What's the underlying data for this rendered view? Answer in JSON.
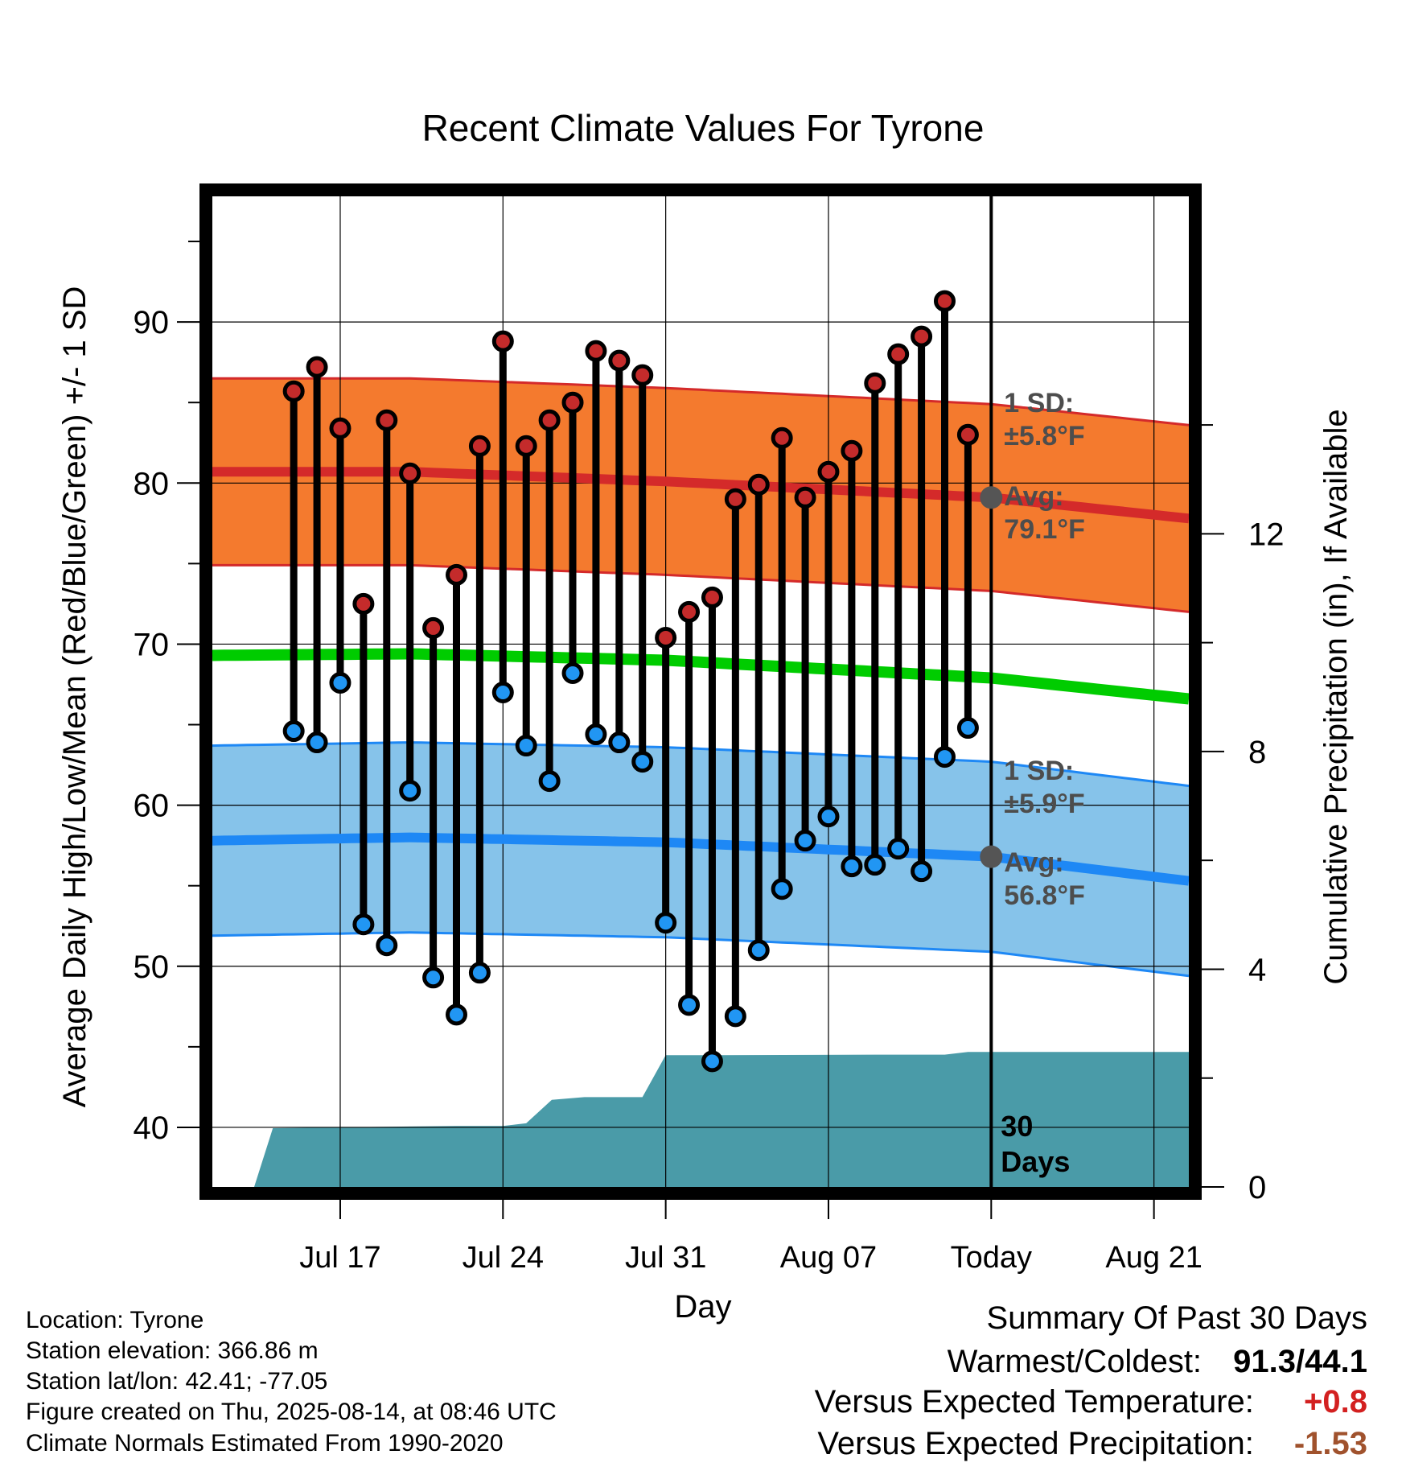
{
  "chart_data": {
    "type": "line",
    "title": "Recent Climate Values For Tyrone",
    "xlabel": "Day",
    "ylabel": "Average Daily High/Low/Mean (Red/Blue/Green) +/- 1 SD",
    "y2label": "Cumulative Precipitation (in), If Available",
    "ylim": [
      36.3,
      97.8
    ],
    "yticks": [
      40,
      50,
      60,
      70,
      80,
      90
    ],
    "y2lim": [
      0,
      18.2
    ],
    "y2ticks": [
      0,
      4,
      8,
      12
    ],
    "xrange_days": [
      -33.5,
      8.5
    ],
    "xticks": [
      {
        "day": -28,
        "label": "Jul 17"
      },
      {
        "day": -21,
        "label": "Jul 24"
      },
      {
        "day": -14,
        "label": "Jul 31"
      },
      {
        "day": -7,
        "label": "Aug 07"
      },
      {
        "day": 0,
        "label": "Today"
      },
      {
        "day": 7,
        "label": "Aug 21"
      }
    ],
    "grid": true,
    "days": [
      -30,
      -29,
      -28,
      -27,
      -26,
      -25,
      -24,
      -23,
      -22,
      -21,
      -20,
      -19,
      -18,
      -17,
      -16,
      -15,
      -14,
      -13,
      -12,
      -11,
      -10,
      -9,
      -8,
      -7,
      -6,
      -5,
      -4,
      -3,
      -2,
      -1
    ],
    "series": [
      {
        "name": "High",
        "color": "#c42b2b",
        "values": [
          85.7,
          87.2,
          83.4,
          72.5,
          83.9,
          80.6,
          71.0,
          74.3,
          82.3,
          88.8,
          82.3,
          83.9,
          85.0,
          88.2,
          87.6,
          86.7,
          70.4,
          72.0,
          72.9,
          79.0,
          79.9,
          82.8,
          79.1,
          80.7,
          82.0,
          86.2,
          88.0,
          89.1,
          91.3,
          83.0
        ]
      },
      {
        "name": "Low",
        "color": "#2196f3",
        "values": [
          64.6,
          63.9,
          67.6,
          52.6,
          51.3,
          60.9,
          49.3,
          47.0,
          49.6,
          67.0,
          63.7,
          61.5,
          68.2,
          64.4,
          63.9,
          62.7,
          52.7,
          47.6,
          44.1,
          46.9,
          51.0,
          54.8,
          57.8,
          59.3,
          56.2,
          56.3,
          57.3,
          55.9,
          63.0,
          64.8
        ]
      },
      {
        "name": "Normal High",
        "color": "#d42a2a",
        "values_at_edges": [
          80.7,
          77.8
        ],
        "curve": [
          [
            -33.5,
            80.7
          ],
          [
            -25,
            80.7
          ],
          [
            -14,
            80.1
          ],
          [
            0,
            79.1
          ],
          [
            8.5,
            77.8
          ]
        ],
        "sd": 5.8
      },
      {
        "name": "Normal Low",
        "color": "#1e88f5",
        "curve": [
          [
            -33.5,
            57.8
          ],
          [
            -25,
            58.0
          ],
          [
            -14,
            57.7
          ],
          [
            0,
            56.8
          ],
          [
            8.5,
            55.3
          ]
        ],
        "sd": 5.9
      },
      {
        "name": "Normal Mean",
        "color": "#00cc00",
        "curve": [
          [
            -33.5,
            69.3
          ],
          [
            -25,
            69.4
          ],
          [
            -14,
            69.0
          ],
          [
            0,
            67.9
          ],
          [
            8.5,
            66.6
          ]
        ]
      },
      {
        "name": "Precipitation",
        "color": "#4a9ba8",
        "cumulative": [
          [
            -33.5,
            0
          ],
          [
            -31.7,
            0
          ],
          [
            -30.9,
            1.08
          ],
          [
            -23.0,
            1.12
          ],
          [
            -21.0,
            1.12
          ],
          [
            -20.0,
            1.17
          ],
          [
            -18.9,
            1.6
          ],
          [
            -17.5,
            1.65
          ],
          [
            -15.0,
            1.65
          ],
          [
            -14.0,
            2.42
          ],
          [
            -12.0,
            2.42
          ],
          [
            -5.0,
            2.43
          ],
          [
            -2.0,
            2.43
          ],
          [
            -1.0,
            2.48
          ],
          [
            8.5,
            2.48
          ]
        ]
      }
    ],
    "today": {
      "day": 0,
      "high_avg": 79.1,
      "low_avg": 56.8
    },
    "annotations": {
      "high_sd": "1 SD:",
      "high_sd_val": "±5.8°F",
      "high_avg": "Avg:",
      "high_avg_val": "79.1°F",
      "low_sd": "1 SD:",
      "low_sd_val": "±5.9°F",
      "low_avg": "Avg:",
      "low_avg_val": "56.8°F",
      "days_num": "30",
      "days_word": "Days"
    }
  },
  "info": {
    "location": "Location: Tyrone",
    "elevation": "Station elevation: 366.86 m",
    "latlon": "Station lat/lon: 42.41; -77.05",
    "created": "Figure created on Thu, 2025-08-14, at 08:46 UTC",
    "normals": "Climate Normals Estimated From 1990-2020"
  },
  "summary": {
    "title": "Summary Of Past 30 Days",
    "warm_cold_label": "Warmest/Coldest:",
    "warm_cold_value": "91.3/44.1",
    "temp_label": "Versus Expected Temperature:",
    "temp_value": "+0.8",
    "temp_color": "#d32020",
    "precip_label": "Versus Expected Precipitation:",
    "precip_value": "-1.53",
    "precip_color": "#a0522d"
  }
}
